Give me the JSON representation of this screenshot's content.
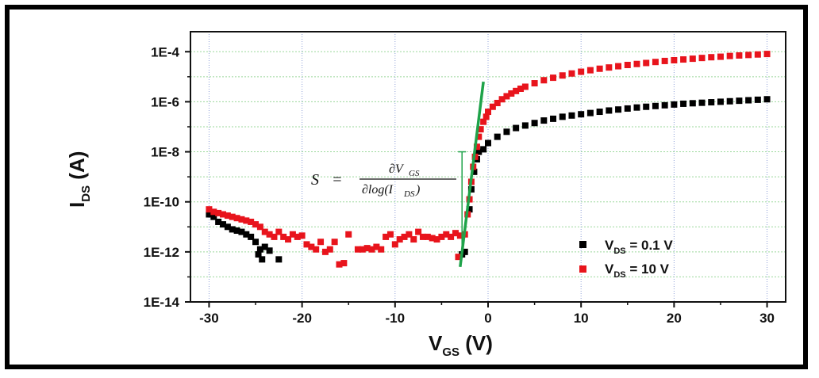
{
  "chart_data": {
    "type": "scatter",
    "x_ticks": [
      "-30",
      "-20",
      "-10",
      "0",
      "10",
      "20",
      "30"
    ],
    "y_ticks": [
      "1E-14",
      "1E-12",
      "1E-10",
      "1E-8",
      "1E-6",
      "1E-4"
    ],
    "xlim": [
      -32,
      32
    ],
    "ylim_log10": [
      -14,
      -3.2
    ],
    "y_scale": "log",
    "grid": true,
    "legend_position": "bottom-right",
    "colors": {
      "vds01": "#000000",
      "vds10": "#e8141c",
      "slope_line": "#1fa34a",
      "grid": "#9bd89b",
      "vgrid": "#8fa0d8"
    },
    "xlabel": {
      "main": "V",
      "sub": "GS",
      "unit": " (V)"
    },
    "ylabel": {
      "main": "I",
      "sub": "DS",
      "unit": " (A)"
    },
    "series": [
      {
        "name": "V_DS = 0.1 V",
        "label_main": "V",
        "label_sub": "DS",
        "label_tail": " = 0.1 V",
        "color": "#000000",
        "points": [
          [
            -30,
            -10.5
          ],
          [
            -29.5,
            -10.6
          ],
          [
            -29,
            -10.8
          ],
          [
            -28.5,
            -10.9
          ],
          [
            -28,
            -11.0
          ],
          [
            -27.5,
            -11.1
          ],
          [
            -27,
            -11.15
          ],
          [
            -26.5,
            -11.2
          ],
          [
            -26,
            -11.3
          ],
          [
            -25.5,
            -11.4
          ],
          [
            -25,
            -11.6
          ],
          [
            -24.5,
            -11.9
          ],
          [
            -24,
            -11.8
          ],
          [
            -23.5,
            -11.95
          ],
          [
            -24.7,
            -12.1
          ],
          [
            -24.3,
            -12.3
          ],
          [
            -22.5,
            -12.3
          ],
          [
            -2.8,
            -12.1
          ],
          [
            -2.5,
            -12.0
          ],
          [
            -2.0,
            -10.3
          ],
          [
            -1.8,
            -9.5
          ],
          [
            -1.5,
            -8.8
          ],
          [
            -1.2,
            -8.3
          ],
          [
            -1.0,
            -8.0
          ],
          [
            -0.5,
            -7.9
          ],
          [
            0,
            -7.65
          ],
          [
            1,
            -7.4
          ],
          [
            2,
            -7.2
          ],
          [
            3,
            -7.05
          ],
          [
            4,
            -6.95
          ],
          [
            5,
            -6.85
          ],
          [
            6,
            -6.75
          ],
          [
            7,
            -6.68
          ],
          [
            8,
            -6.6
          ],
          [
            9,
            -6.55
          ],
          [
            10,
            -6.5
          ],
          [
            11,
            -6.45
          ],
          [
            12,
            -6.4
          ],
          [
            13,
            -6.35
          ],
          [
            14,
            -6.31
          ],
          [
            15,
            -6.27
          ],
          [
            16,
            -6.23
          ],
          [
            17,
            -6.2
          ],
          [
            18,
            -6.17
          ],
          [
            19,
            -6.14
          ],
          [
            20,
            -6.11
          ],
          [
            21,
            -6.08
          ],
          [
            22,
            -6.06
          ],
          [
            23,
            -6.04
          ],
          [
            24,
            -6.02
          ],
          [
            25,
            -6.0
          ],
          [
            26,
            -5.98
          ],
          [
            27,
            -5.96
          ],
          [
            28,
            -5.94
          ],
          [
            29,
            -5.92
          ],
          [
            30,
            -5.9
          ]
        ]
      },
      {
        "name": "V_DS = 10 V",
        "label_main": "V",
        "label_sub": "DS",
        "label_tail": " = 10 V",
        "color": "#e8141c",
        "points": [
          [
            -30,
            -10.3
          ],
          [
            -29.5,
            -10.4
          ],
          [
            -29,
            -10.45
          ],
          [
            -28.5,
            -10.5
          ],
          [
            -28,
            -10.55
          ],
          [
            -27.5,
            -10.6
          ],
          [
            -27,
            -10.65
          ],
          [
            -26.5,
            -10.7
          ],
          [
            -26,
            -10.75
          ],
          [
            -25.5,
            -10.8
          ],
          [
            -25,
            -10.9
          ],
          [
            -24.5,
            -11.0
          ],
          [
            -24,
            -11.2
          ],
          [
            -23.5,
            -11.3
          ],
          [
            -23,
            -11.4
          ],
          [
            -22.5,
            -11.2
          ],
          [
            -22,
            -11.4
          ],
          [
            -21.5,
            -11.5
          ],
          [
            -21,
            -11.3
          ],
          [
            -20.5,
            -11.4
          ],
          [
            -20,
            -11.35
          ],
          [
            -19.5,
            -11.7
          ],
          [
            -19,
            -11.8
          ],
          [
            -18.5,
            -11.9
          ],
          [
            -18,
            -11.6
          ],
          [
            -17.5,
            -12.0
          ],
          [
            -17,
            -11.9
          ],
          [
            -16.5,
            -11.6
          ],
          [
            -16,
            -12.5
          ],
          [
            -15.5,
            -12.45
          ],
          [
            -15,
            -11.3
          ],
          [
            -14,
            -11.9
          ],
          [
            -13.5,
            -11.9
          ],
          [
            -13,
            -11.85
          ],
          [
            -12.5,
            -11.9
          ],
          [
            -12,
            -11.8
          ],
          [
            -11.5,
            -11.9
          ],
          [
            -11,
            -11.4
          ],
          [
            -10.5,
            -11.3
          ],
          [
            -10,
            -11.7
          ],
          [
            -9.5,
            -11.5
          ],
          [
            -9,
            -11.4
          ],
          [
            -8.5,
            -11.3
          ],
          [
            -8,
            -11.5
          ],
          [
            -7.5,
            -11.2
          ],
          [
            -7,
            -11.4
          ],
          [
            -6.5,
            -11.4
          ],
          [
            -6,
            -11.45
          ],
          [
            -5.5,
            -11.5
          ],
          [
            -5,
            -11.4
          ],
          [
            -4.5,
            -11.3
          ],
          [
            -4,
            -11.4
          ],
          [
            -3.5,
            -11.25
          ],
          [
            -3,
            -11.35
          ],
          [
            -3.2,
            -12.2
          ],
          [
            -2.5,
            -11.3
          ],
          [
            -2.2,
            -10.5
          ],
          [
            -2.0,
            -9.9
          ],
          [
            -1.8,
            -9.2
          ],
          [
            -1.6,
            -8.6
          ],
          [
            -1.4,
            -8.2
          ],
          [
            -1.2,
            -7.8
          ],
          [
            -1.0,
            -7.4
          ],
          [
            -0.8,
            -7.1
          ],
          [
            -0.5,
            -6.8
          ],
          [
            -0.2,
            -6.6
          ],
          [
            0,
            -6.4
          ],
          [
            0.5,
            -6.2
          ],
          [
            1,
            -6.05
          ],
          [
            1.5,
            -5.9
          ],
          [
            2,
            -5.78
          ],
          [
            2.5,
            -5.67
          ],
          [
            3,
            -5.57
          ],
          [
            3.5,
            -5.48
          ],
          [
            4,
            -5.4
          ],
          [
            5,
            -5.26
          ],
          [
            6,
            -5.14
          ],
          [
            7,
            -5.04
          ],
          [
            8,
            -4.95
          ],
          [
            9,
            -4.87
          ],
          [
            10,
            -4.8
          ],
          [
            11,
            -4.74
          ],
          [
            12,
            -4.68
          ],
          [
            13,
            -4.63
          ],
          [
            14,
            -4.58
          ],
          [
            15,
            -4.53
          ],
          [
            16,
            -4.49
          ],
          [
            17,
            -4.45
          ],
          [
            18,
            -4.41
          ],
          [
            19,
            -4.37
          ],
          [
            20,
            -4.34
          ],
          [
            21,
            -4.31
          ],
          [
            22,
            -4.28
          ],
          [
            23,
            -4.25
          ],
          [
            24,
            -4.22
          ],
          [
            25,
            -4.2
          ],
          [
            26,
            -4.17
          ],
          [
            27,
            -4.15
          ],
          [
            28,
            -4.13
          ],
          [
            29,
            -4.11
          ],
          [
            30,
            -4.09
          ]
        ]
      }
    ],
    "slope_line": {
      "x1": -3.0,
      "y1": -12.6,
      "x2": -0.5,
      "y2": -5.2
    },
    "annotation": {
      "lhs": "S",
      "equals": "=",
      "numerator": "∂V",
      "numerator_sub": "GS",
      "denominator": "∂log(I",
      "denominator_sub": "DS",
      "denominator_close": ")"
    }
  }
}
